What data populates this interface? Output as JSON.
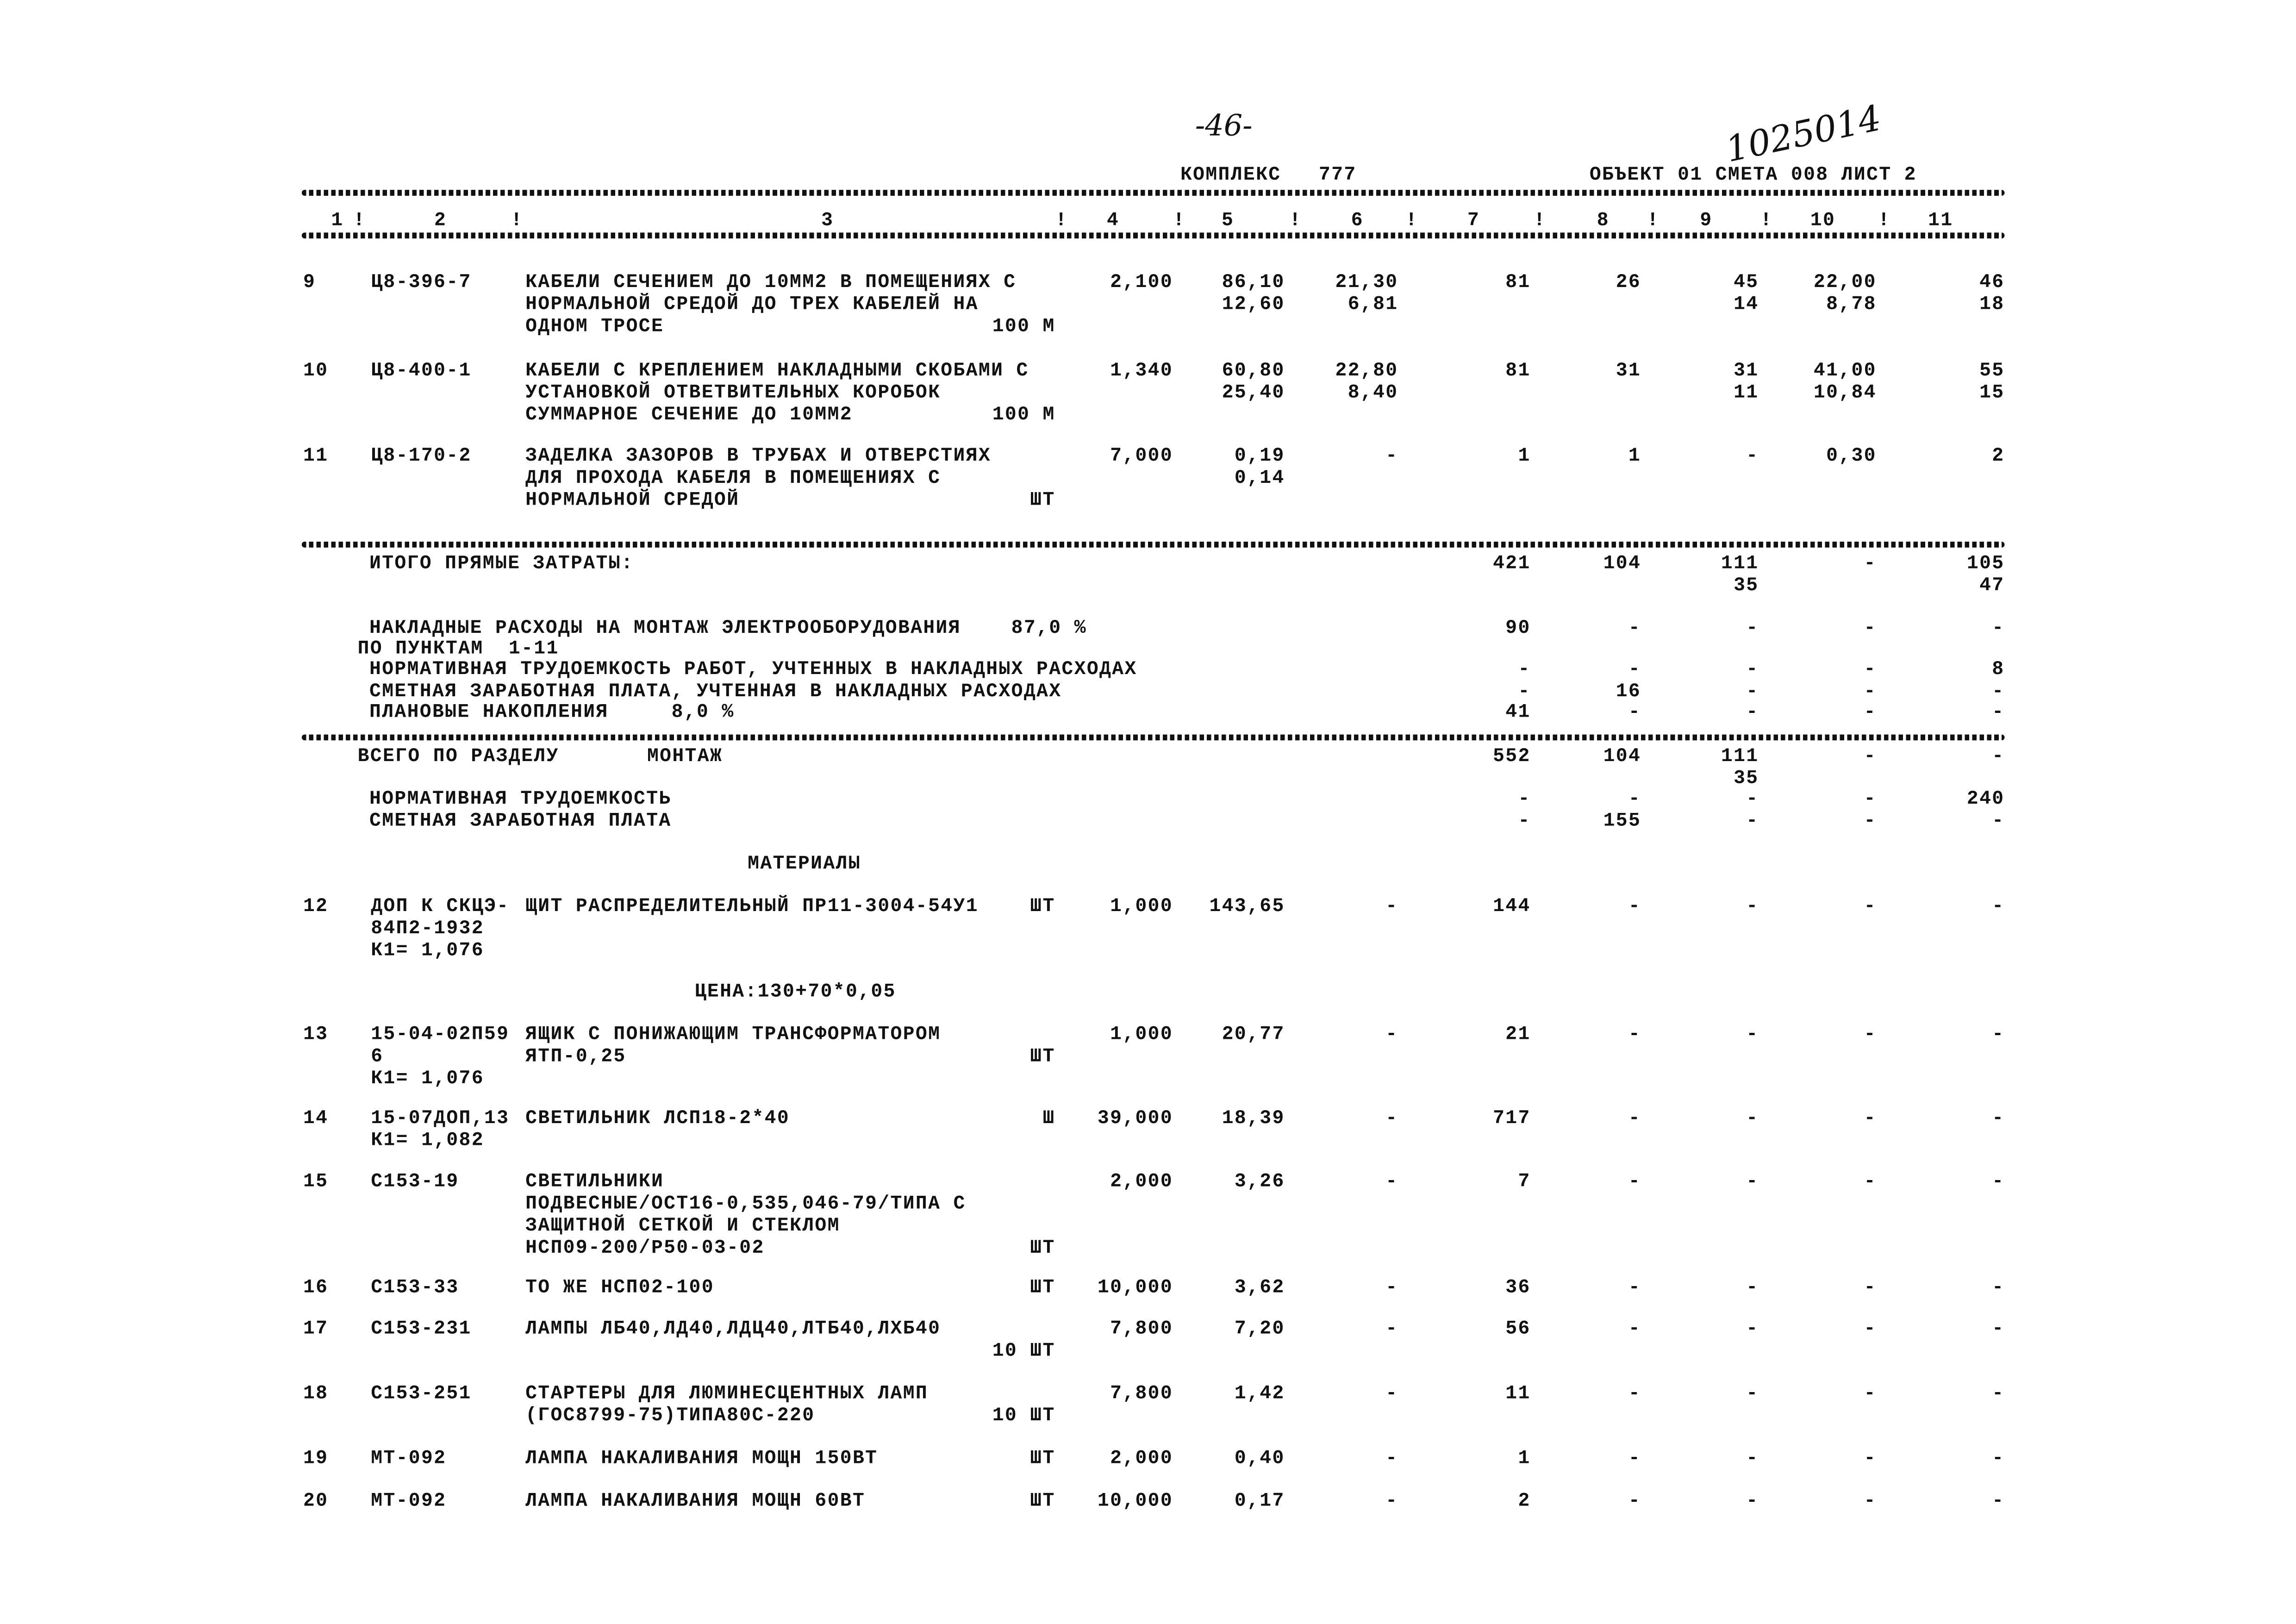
{
  "header": {
    "page_number_handwritten": "-46-",
    "inventory_number_handwritten": "1025014",
    "complex": "КОМПЛЕКС   777",
    "object_line": "ОБЪЕКТ 01 СМЕТА 008 ЛИСТ 2",
    "column_numbers": [
      "1",
      "!",
      "2",
      "!",
      "3",
      "!",
      "4",
      "!",
      "5",
      "!",
      "6",
      "!",
      "7",
      "!",
      "8",
      "!",
      "9",
      "!",
      "10",
      "!",
      "11"
    ]
  },
  "items_top": [
    {
      "num": "9",
      "code": [
        "Ц8-396-7"
      ],
      "desc": [
        "КАБЕЛИ СЕЧЕНИЕМ ДО 10ММ2 В ПОМЕЩЕНИЯХ С",
        "НОРМАЛЬНОЙ СРЕДОЙ ДО ТРЕХ КАБЕЛЕЙ НА",
        "ОДНОМ ТРОСЕ"
      ],
      "unit": "100 М",
      "unit_line": 2,
      "cols": {
        "c4": [
          "2,100"
        ],
        "c5": [
          "86,10",
          "12,60"
        ],
        "c6": [
          "21,30",
          "6,81"
        ],
        "c7": [
          "81"
        ],
        "c8": [
          "26"
        ],
        "c9": [
          "45",
          "14"
        ],
        "c10": [
          "22,00",
          "8,78"
        ],
        "c11": [
          "46",
          "18"
        ]
      }
    },
    {
      "num": "10",
      "code": [
        "Ц8-400-1"
      ],
      "desc": [
        "КАБЕЛИ С КРЕПЛЕНИЕМ НАКЛАДНЫМИ СКОБАМИ С",
        "УСТАНОВКОЙ ОТВЕТВИТЕЛЬНЫХ КОРОБОК",
        "СУММАРНОЕ СЕЧЕНИЕ ДО 10ММ2"
      ],
      "unit": "100 М",
      "unit_line": 2,
      "cols": {
        "c4": [
          "1,340"
        ],
        "c5": [
          "60,80",
          "25,40"
        ],
        "c6": [
          "22,80",
          "8,40"
        ],
        "c7": [
          "81"
        ],
        "c8": [
          "31"
        ],
        "c9": [
          "31",
          "11"
        ],
        "c10": [
          "41,00",
          "10,84"
        ],
        "c11": [
          "55",
          "15"
        ]
      }
    },
    {
      "num": "11",
      "code": [
        "Ц8-170-2"
      ],
      "desc": [
        "ЗАДЕЛКА ЗАЗОРОВ В ТРУБАХ И ОТВЕРСТИЯХ",
        "ДЛЯ ПРОХОДА КАБЕЛЯ В ПОМЕЩЕНИЯХ С",
        "НОРМАЛЬНОЙ СРЕДОЙ"
      ],
      "unit": "ШТ",
      "unit_line": 2,
      "cols": {
        "c4": [
          "7,000"
        ],
        "c5": [
          "0,19",
          "0,14"
        ],
        "c6": [
          "-"
        ],
        "c7": [
          "1"
        ],
        "c8": [
          "1"
        ],
        "c9": [
          "-"
        ],
        "c10": [
          "0,30"
        ],
        "c11": [
          "2"
        ]
      }
    }
  ],
  "summary": [
    {
      "label": [
        "ИТОГО ПРЯМЫЕ ЗАТРАТЫ:"
      ],
      "cols": {
        "c7": [
          "421"
        ],
        "c8": [
          "104"
        ],
        "c9": [
          "111",
          "35"
        ],
        "c10": [
          "-"
        ],
        "c11": [
          "105",
          "47"
        ]
      }
    },
    {
      "label": [
        "НАКЛАДНЫЕ РАСХОДЫ НА МОНТАЖ ЭЛЕКТРООБОРУДОВАНИЯ    87,0 %",
        "ПО ПУНКТАМ  1-11"
      ],
      "cols": {
        "c7": [
          "90"
        ],
        "c8": [
          "-"
        ],
        "c9": [
          "-"
        ],
        "c10": [
          "-"
        ],
        "c11": [
          "-"
        ]
      }
    },
    {
      "label": [
        "НОРМАТИВНАЯ ТРУДОЕМКОСТЬ РАБОТ, УЧТЕННЫХ В НАКЛАДНЫХ РАСХОДАХ"
      ],
      "cols": {
        "c7": [
          "-"
        ],
        "c8": [
          "-"
        ],
        "c9": [
          "-"
        ],
        "c10": [
          "-"
        ],
        "c11": [
          "8"
        ]
      }
    },
    {
      "label": [
        "СМЕТНАЯ ЗАРАБОТНАЯ ПЛАТА, УЧТЕННАЯ В НАКЛАДНЫХ РАСХОДАХ"
      ],
      "cols": {
        "c7": [
          "-"
        ],
        "c8": [
          "16"
        ],
        "c9": [
          "-"
        ],
        "c10": [
          "-"
        ],
        "c11": [
          "-"
        ]
      }
    },
    {
      "label": [
        "ПЛАНОВЫЕ НАКОПЛЕНИЯ     8,0 %"
      ],
      "cols": {
        "c7": [
          "41"
        ],
        "c8": [
          "-"
        ],
        "c9": [
          "-"
        ],
        "c10": [
          "-"
        ],
        "c11": [
          "-"
        ]
      }
    },
    {
      "label": [
        "ВСЕГО ПО РАЗДЕЛУ       МОНТАЖ"
      ],
      "cols": {
        "c7": [
          "552"
        ],
        "c8": [
          "104"
        ],
        "c9": [
          "111",
          "35"
        ],
        "c10": [
          "-"
        ],
        "c11": [
          "-"
        ]
      }
    },
    {
      "label": [
        "НОРМАТИВНАЯ ТРУДОЕМКОСТЬ"
      ],
      "cols": {
        "c7": [
          "-"
        ],
        "c8": [
          "-"
        ],
        "c9": [
          "-"
        ],
        "c10": [
          "-"
        ],
        "c11": [
          "240"
        ]
      }
    },
    {
      "label": [
        "СМЕТНАЯ ЗАРАБОТНАЯ ПЛАТА"
      ],
      "cols": {
        "c7": [
          "-"
        ],
        "c8": [
          "155"
        ],
        "c9": [
          "-"
        ],
        "c10": [
          "-"
        ],
        "c11": [
          "-"
        ]
      }
    }
  ],
  "materials_heading": "МАТЕРИАЛЫ",
  "price_note": "ЦЕНА:130+70*0,05",
  "items_materials": [
    {
      "num": "12",
      "code": [
        "ДОП К СКЦЭ-",
        "84П2-1932",
        "К1= 1,076"
      ],
      "desc": [
        "ЩИТ РАСПРЕДЕЛИТЕЛЬНЫЙ ПР11-3004-54У1"
      ],
      "unit": "ШТ",
      "unit_line": 0,
      "cols": {
        "c4": [
          "1,000"
        ],
        "c5": [
          "143,65"
        ],
        "c6": [
          "-"
        ],
        "c7": [
          "144"
        ],
        "c8": [
          "-"
        ],
        "c9": [
          "-"
        ],
        "c10": [
          "-"
        ],
        "c11": [
          "-"
        ]
      }
    },
    {
      "num": "13",
      "code": [
        "15-04-02П59",
        "6",
        "К1= 1,076"
      ],
      "desc": [
        "ЯЩИК С ПОНИЖАЮЩИМ ТРАНСФОРМАТОРОМ",
        "ЯТП-0,25"
      ],
      "unit": "ШТ",
      "unit_line": 1,
      "cols": {
        "c4": [
          "1,000"
        ],
        "c5": [
          "20,77"
        ],
        "c6": [
          "-"
        ],
        "c7": [
          "21"
        ],
        "c8": [
          "-"
        ],
        "c9": [
          "-"
        ],
        "c10": [
          "-"
        ],
        "c11": [
          "-"
        ]
      }
    },
    {
      "num": "14",
      "code": [
        "15-07ДОП,13",
        "К1= 1,082"
      ],
      "desc": [
        "СВЕТИЛЬНИК ЛСП18-2*40"
      ],
      "unit": "Ш",
      "unit_line": 0,
      "cols": {
        "c4": [
          "39,000"
        ],
        "c5": [
          "18,39"
        ],
        "c6": [
          "-"
        ],
        "c7": [
          "717"
        ],
        "c8": [
          "-"
        ],
        "c9": [
          "-"
        ],
        "c10": [
          "-"
        ],
        "c11": [
          "-"
        ]
      }
    },
    {
      "num": "15",
      "code": [
        "С153-19"
      ],
      "desc": [
        "СВЕТИЛЬНИКИ",
        "ПОДВЕСНЫЕ/ОСТ16-0,535,046-79/ТИПА С",
        "ЗАЩИТНОЙ СЕТКОЙ И СТЕКЛОМ",
        "НСП09-200/Р50-03-02"
      ],
      "unit": "ШТ",
      "unit_line": 3,
      "cols": {
        "c4": [
          "2,000"
        ],
        "c5": [
          "3,26"
        ],
        "c6": [
          "-"
        ],
        "c7": [
          "7"
        ],
        "c8": [
          "-"
        ],
        "c9": [
          "-"
        ],
        "c10": [
          "-"
        ],
        "c11": [
          "-"
        ]
      }
    },
    {
      "num": "16",
      "code": [
        "С153-33"
      ],
      "desc": [
        "ТО ЖЕ НСП02-100"
      ],
      "unit": "ШТ",
      "unit_line": 0,
      "cols": {
        "c4": [
          "10,000"
        ],
        "c5": [
          "3,62"
        ],
        "c6": [
          "-"
        ],
        "c7": [
          "36"
        ],
        "c8": [
          "-"
        ],
        "c9": [
          "-"
        ],
        "c10": [
          "-"
        ],
        "c11": [
          "-"
        ]
      }
    },
    {
      "num": "17",
      "code": [
        "С153-231"
      ],
      "desc": [
        "ЛАМПЫ ЛБ40,ЛД40,ЛДЦ40,ЛТБ40,ЛХБ40"
      ],
      "unit": "10 ШТ",
      "unit_line": 1,
      "cols": {
        "c4": [
          "7,800"
        ],
        "c5": [
          "7,20"
        ],
        "c6": [
          "-"
        ],
        "c7": [
          "56"
        ],
        "c8": [
          "-"
        ],
        "c9": [
          "-"
        ],
        "c10": [
          "-"
        ],
        "c11": [
          "-"
        ]
      }
    },
    {
      "num": "18",
      "code": [
        "С153-251"
      ],
      "desc": [
        "СТАРТЕРЫ ДЛЯ ЛЮМИНЕСЦЕНТНЫХ ЛАМП",
        "(ГОС8799-75)ТИПА80С-220"
      ],
      "unit": "10 ШТ",
      "unit_line": 1,
      "cols": {
        "c4": [
          "7,800"
        ],
        "c5": [
          "1,42"
        ],
        "c6": [
          "-"
        ],
        "c7": [
          "11"
        ],
        "c8": [
          "-"
        ],
        "c9": [
          "-"
        ],
        "c10": [
          "-"
        ],
        "c11": [
          "-"
        ]
      }
    },
    {
      "num": "19",
      "code": [
        "МТ-092"
      ],
      "desc": [
        "ЛАМПА НАКАЛИВАНИЯ МОЩН 150ВТ"
      ],
      "unit": "ШТ",
      "unit_line": 0,
      "cols": {
        "c4": [
          "2,000"
        ],
        "c5": [
          "0,40"
        ],
        "c6": [
          "-"
        ],
        "c7": [
          "1"
        ],
        "c8": [
          "-"
        ],
        "c9": [
          "-"
        ],
        "c10": [
          "-"
        ],
        "c11": [
          "-"
        ]
      }
    },
    {
      "num": "20",
      "code": [
        "МТ-092"
      ],
      "desc": [
        "ЛАМПА НАКАЛИВАНИЯ МОЩН 60ВТ"
      ],
      "unit": "ШТ",
      "unit_line": 0,
      "cols": {
        "c4": [
          "10,000"
        ],
        "c5": [
          "0,17"
        ],
        "c6": [
          "-"
        ],
        "c7": [
          "2"
        ],
        "c8": [
          "-"
        ],
        "c9": [
          "-"
        ],
        "c10": [
          "-"
        ],
        "c11": [
          "-"
        ]
      }
    }
  ]
}
